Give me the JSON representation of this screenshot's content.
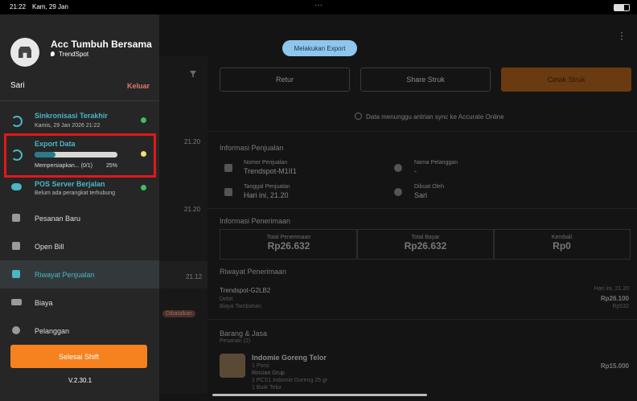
{
  "status_bar": {
    "time": "21:22",
    "date": "Kam, 29 Jan"
  },
  "sidebar": {
    "store_name": "Acc Tumbuh Bersama",
    "branch": "TrendSpot",
    "user": "Sari",
    "logout": "Keluar",
    "sync": {
      "title": "Sinkronisasi Terakhir",
      "subtitle": "Kamis, 29 Jan 2026 21:22"
    },
    "export": {
      "title": "Export Data",
      "status": "Mempersiapkan... (0/1)",
      "percent": "25%"
    },
    "server": {
      "title": "POS Server Berjalan",
      "subtitle": "Belum ada perangkat terhubung"
    },
    "menu": [
      "Pesanan Baru",
      "Open Bill",
      "Riwayat Penjualan",
      "Biaya",
      "Pelanggan"
    ],
    "shift_button": "Selesai Shift",
    "version": "V.2.30.1"
  },
  "toast": "Melakukan Export",
  "list": {
    "times": [
      "21.20",
      "21.20",
      "21.12"
    ],
    "badge": "Dibatalkan"
  },
  "detail": {
    "buttons": [
      "Retur",
      "Share Struk",
      "Cetak Struk"
    ],
    "sync_note": "Data menunggu antrian sync ke Accurate Online",
    "sales_info": {
      "title": "Informasi Penjualan",
      "fields": [
        {
          "label": "Nomor Penjualan",
          "value": "Trendspot-M1II1"
        },
        {
          "label": "Nama Pelanggan",
          "value": "-"
        },
        {
          "label": "Tanggal Penjualan",
          "value": "Hari ini, 21.20"
        },
        {
          "label": "Dibuat Oleh",
          "value": "Sari"
        }
      ]
    },
    "receipt_info": {
      "title": "Informasi Penerimaan",
      "boxes": [
        {
          "label": "Total Penerimaan",
          "value": "Rp26.632"
        },
        {
          "label": "Total Bayar",
          "value": "Rp26.632"
        },
        {
          "label": "Kembali",
          "value": "Rp0"
        }
      ]
    },
    "receipt_history": {
      "title": "Riwayat Penerimaan",
      "number": "Trendspot-G2LB2",
      "date": "Hari ini, 21.20",
      "method": "Debit",
      "amount": "Rp26.100",
      "fee_label": "Biaya Tambahan",
      "fee": "Rp532"
    },
    "items": {
      "title": "Barang & Jasa",
      "subtitle": "Pesanan (2)",
      "name": "Indomie Goreng Telor",
      "unit": "1 Porsi",
      "group_title": "Rincian Grup",
      "group_lines": [
        "1 PCS1 Indomie Goreng 25 gr",
        "1 Butir Telor"
      ],
      "price": "Rp15.000"
    }
  }
}
